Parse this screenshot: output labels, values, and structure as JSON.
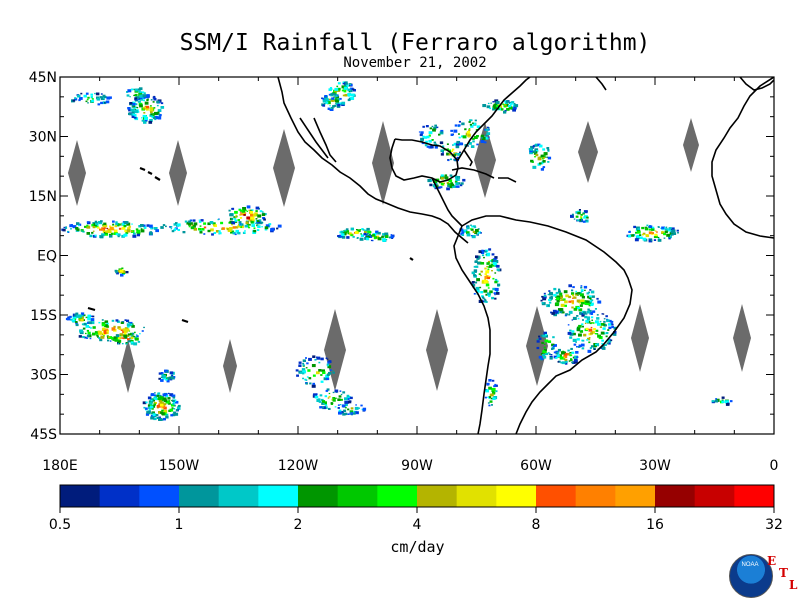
{
  "title": "SSM/I Rainfall (Ferraro algorithm)",
  "subtitle": "November 21, 2002",
  "map": {
    "extent": {
      "lon": [
        -180,
        0
      ],
      "lat": [
        -45,
        45
      ]
    },
    "lat_ticks": [
      {
        "value": 45,
        "label": "45N"
      },
      {
        "value": 30,
        "label": "30N"
      },
      {
        "value": 15,
        "label": "15N"
      },
      {
        "value": 0,
        "label": "EQ"
      },
      {
        "value": -15,
        "label": "15S"
      },
      {
        "value": -30,
        "label": "30S"
      },
      {
        "value": -45,
        "label": "45S"
      }
    ],
    "lon_ticks": [
      {
        "value": -180,
        "label": "180E"
      },
      {
        "value": -150,
        "label": "150W"
      },
      {
        "value": -120,
        "label": "120W"
      },
      {
        "value": -90,
        "label": "90W"
      },
      {
        "value": -60,
        "label": "60W"
      },
      {
        "value": -30,
        "label": "30W"
      },
      {
        "value": 0,
        "label": "0"
      }
    ],
    "orbit_gap_color": "#6b6b6b",
    "coast_color": "#000000"
  },
  "colorbar": {
    "units": "cm/day",
    "tick_labels": [
      "0.5",
      "1",
      "2",
      "4",
      "8",
      "16",
      "32"
    ],
    "colors": [
      "#001c7c",
      "#0030c8",
      "#0050ff",
      "#00969c",
      "#00c8c8",
      "#00ffff",
      "#009600",
      "#00c800",
      "#00ff00",
      "#b4b400",
      "#e1e100",
      "#ffff00",
      "#ff5000",
      "#ff8000",
      "#ffa000",
      "#960000",
      "#c80000",
      "#ff0000"
    ]
  },
  "logo": {
    "agency": "NOAA",
    "lab_letters": [
      "E",
      "T",
      "L"
    ]
  }
}
